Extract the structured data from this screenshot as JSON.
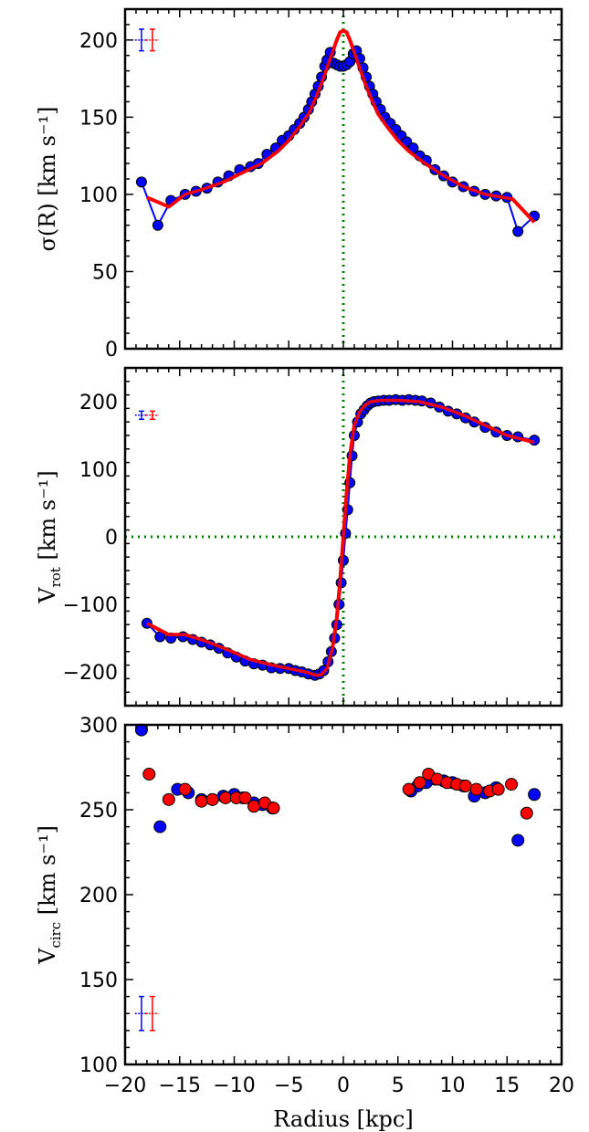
{
  "colors": {
    "blue": "#0000ff",
    "red": "#ff0000",
    "green": "#008000",
    "marker_edge": "#000000"
  },
  "chart_data": [
    {
      "type": "line",
      "panel": "top",
      "ylabel": "σ(R) [km s⁻¹]",
      "xlabel": "",
      "xlim": [
        -20,
        20
      ],
      "ylim": [
        0,
        220
      ],
      "yticks": [
        0,
        50,
        100,
        150,
        200
      ],
      "xticks": [
        -20,
        -15,
        -10,
        -5,
        0,
        5,
        10,
        15,
        20
      ],
      "vline_x": 0,
      "series": [
        {
          "color": "blue",
          "markers": true,
          "x": [
            -18.5,
            -17.0,
            -15.8,
            -14.5,
            -13.5,
            -12.5,
            -11.5,
            -10.5,
            -9.5,
            -8.5,
            -7.8,
            -7.0,
            -6.2,
            -5.6,
            -5.0,
            -4.5,
            -4.0,
            -3.6,
            -3.2,
            -2.9,
            -2.6,
            -2.3,
            -2.0,
            -1.7,
            -1.5,
            -1.2,
            -0.9,
            -0.6,
            -0.3,
            0.0,
            0.3,
            0.6,
            0.9,
            1.2,
            1.5,
            1.8,
            2.1,
            2.4,
            2.7,
            3.0,
            3.4,
            3.8,
            4.3,
            4.8,
            5.3,
            5.8,
            6.4,
            7.0,
            7.6,
            8.4,
            9.2,
            10.0,
            11.0,
            12.0,
            13.0,
            14.0,
            15.0,
            16.0,
            17.5
          ],
          "y": [
            108,
            80,
            96,
            100,
            102,
            104,
            108,
            112,
            116,
            118,
            120,
            126,
            130,
            135,
            138,
            142,
            146,
            150,
            155,
            160,
            165,
            170,
            176,
            183,
            187,
            192,
            185,
            184,
            183,
            183,
            184,
            186,
            191,
            193,
            188,
            182,
            176,
            170,
            165,
            160,
            155,
            150,
            146,
            142,
            138,
            134,
            130,
            125,
            122,
            116,
            112,
            108,
            105,
            102,
            100,
            99,
            98,
            76,
            86
          ]
        },
        {
          "color": "red",
          "markers": false,
          "x": [
            -18.0,
            -16.0,
            -14.5,
            -13.0,
            -11.0,
            -9.0,
            -7.5,
            -6.0,
            -5.0,
            -4.0,
            -3.2,
            -2.5,
            -2.0,
            -1.5,
            -1.0,
            -0.6,
            -0.3,
            0.0,
            0.3,
            0.6,
            1.0,
            1.5,
            2.0,
            2.5,
            3.2,
            4.0,
            5.0,
            6.0,
            7.5,
            9.0,
            11.0,
            13.0,
            15.5,
            17.5
          ],
          "y": [
            98,
            92,
            100,
            103,
            108,
            115,
            120,
            128,
            135,
            144,
            152,
            163,
            172,
            182,
            192,
            200,
            205,
            206,
            205,
            200,
            192,
            182,
            172,
            163,
            152,
            144,
            135,
            128,
            120,
            113,
            105,
            100,
            97,
            82
          ]
        }
      ]
    },
    {
      "type": "line",
      "panel": "middle",
      "ylabel": "V_rot [km s⁻¹]",
      "xlabel": "",
      "xlim": [
        -20,
        20
      ],
      "ylim": [
        -250,
        250
      ],
      "yticks": [
        -200,
        -100,
        0,
        100,
        200
      ],
      "xticks": [
        -20,
        -15,
        -10,
        -5,
        0,
        5,
        10,
        15,
        20
      ],
      "hline_y": 0,
      "vline_x": 0,
      "series": [
        {
          "color": "blue",
          "markers": true,
          "x": [
            -18.0,
            -16.8,
            -15.8,
            -14.7,
            -13.8,
            -13.0,
            -12.2,
            -11.4,
            -10.6,
            -9.8,
            -9.0,
            -8.2,
            -7.4,
            -6.6,
            -5.8,
            -5.0,
            -4.4,
            -3.8,
            -3.2,
            -2.6,
            -2.2,
            -1.8,
            -1.4,
            -1.1,
            -0.8,
            -0.6,
            -0.4,
            -0.2,
            0.0,
            0.2,
            0.4,
            0.6,
            0.8,
            1.0,
            1.3,
            1.6,
            1.9,
            2.2,
            2.5,
            2.8,
            3.2,
            3.7,
            4.2,
            4.8,
            5.4,
            6.0,
            6.6,
            7.2,
            8.0,
            8.8,
            9.6,
            10.4,
            11.2,
            12.0,
            13.0,
            14.0,
            15.0,
            16.0,
            17.5
          ],
          "y": [
            -128,
            -148,
            -150,
            -148,
            -152,
            -156,
            -160,
            -165,
            -172,
            -178,
            -184,
            -188,
            -190,
            -194,
            -195,
            -195,
            -198,
            -200,
            -203,
            -205,
            -203,
            -198,
            -185,
            -170,
            -150,
            -130,
            -100,
            -68,
            -35,
            5,
            40,
            80,
            120,
            150,
            170,
            182,
            188,
            194,
            198,
            200,
            201,
            202,
            202,
            203,
            202,
            203,
            202,
            201,
            198,
            192,
            186,
            182,
            176,
            170,
            162,
            155,
            150,
            148,
            143
          ]
        },
        {
          "color": "red",
          "markers": false,
          "x": [
            -18.0,
            -16.0,
            -14.5,
            -12.5,
            -10.5,
            -8.5,
            -6.5,
            -5.0,
            -3.5,
            -2.5,
            -2.0,
            -1.5,
            -1.0,
            -0.6,
            -0.3,
            0.0,
            0.3,
            0.6,
            1.0,
            1.5,
            2.0,
            2.5,
            3.5,
            5.0,
            7.0,
            9.0,
            11.0,
            13.0,
            15.0,
            17.5
          ],
          "y": [
            -128,
            -145,
            -145,
            -155,
            -168,
            -182,
            -190,
            -195,
            -200,
            -205,
            -204,
            -195,
            -165,
            -120,
            -65,
            0,
            65,
            120,
            165,
            185,
            195,
            200,
            202,
            202,
            200,
            192,
            180,
            165,
            150,
            140
          ]
        }
      ]
    },
    {
      "type": "scatter",
      "panel": "bottom",
      "ylabel": "V_circ [km s⁻¹]",
      "xlabel": "Radius [kpc]",
      "xlim": [
        -20,
        20
      ],
      "ylim": [
        100,
        300
      ],
      "yticks": [
        100,
        150,
        200,
        250,
        300
      ],
      "xticks": [
        -20,
        -15,
        -10,
        -5,
        0,
        5,
        10,
        15,
        20
      ],
      "xticklabels": [
        "−20",
        "−15",
        "−10",
        "−5",
        "0",
        "5",
        "10",
        "15",
        "20"
      ],
      "series": [
        {
          "color": "blue",
          "markers": true,
          "x": [
            -18.5,
            -16.8,
            -15.2,
            -14.2,
            -13.0,
            -12.0,
            -11.0,
            -10.0,
            -9.2,
            -8.2,
            -7.4,
            -6.5,
            6.2,
            6.8,
            7.6,
            8.4,
            9.2,
            10.0,
            11.0,
            12.0,
            13.0,
            14.0,
            16.0,
            17.5
          ],
          "y": [
            297,
            240,
            262,
            260,
            256,
            256,
            258,
            259,
            257,
            254,
            253,
            251,
            261,
            264,
            266,
            268,
            267,
            266,
            264,
            258,
            260,
            263,
            232,
            259
          ]
        },
        {
          "color": "red",
          "markers": true,
          "x": [
            -17.8,
            -16.0,
            -14.5,
            -13.0,
            -12.0,
            -10.8,
            -9.8,
            -9.0,
            -8.2,
            -7.2,
            -6.4,
            6.0,
            7.0,
            7.8,
            8.6,
            9.5,
            10.4,
            11.2,
            12.2,
            13.4,
            14.2,
            15.4,
            16.8
          ],
          "y": [
            271,
            256,
            262,
            255,
            256,
            257,
            257,
            257,
            252,
            254,
            251,
            262,
            266,
            271,
            268,
            266,
            265,
            264,
            262,
            261,
            262,
            265,
            248
          ]
        }
      ]
    }
  ],
  "error_markers": [
    {
      "panel": "top",
      "y": 200,
      "blue_x": -18.5,
      "red_x": -17.5,
      "yerr": 7,
      "xerr": 0.6
    },
    {
      "panel": "middle",
      "y": 180,
      "blue_x": -18.5,
      "red_x": -17.5,
      "yerr": 6,
      "xerr": 0.6
    },
    {
      "panel": "bottom",
      "y": 130,
      "blue_x": -18.5,
      "red_x": -17.5,
      "yerr": 10,
      "xerr": 0.6
    }
  ]
}
